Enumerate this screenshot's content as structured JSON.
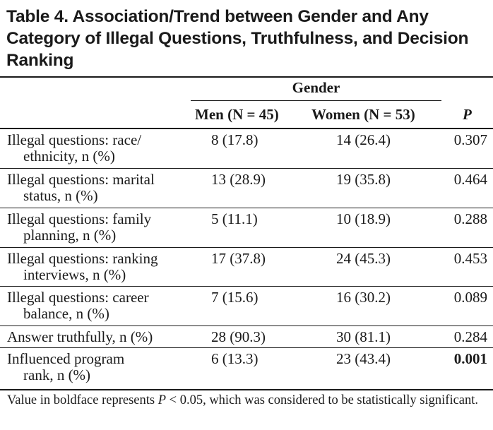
{
  "table": {
    "title": "Table 4. Association/Trend between Gender and Any Category of Illegal Questions, Truthfulness, and Decision Ranking",
    "group_header": "Gender",
    "columns": {
      "men": "Men (N = 45)",
      "women": "Women (N = 53)",
      "p": "P"
    },
    "rows": [
      {
        "label_line1": "Illegal questions: race/",
        "label_line2": "ethnicity, n (%)",
        "men": "8 (17.8)",
        "women": "14 (26.4)",
        "p": "0.307"
      },
      {
        "label_line1": "Illegal questions: marital",
        "label_line2": "status, n (%)",
        "men": "13 (28.9)",
        "women": "19 (35.8)",
        "p": "0.464"
      },
      {
        "label_line1": "Illegal questions: family",
        "label_line2": "planning, n (%)",
        "men": "5 (11.1)",
        "women": "10 (18.9)",
        "p": "0.288"
      },
      {
        "label_line1": "Illegal questions: ranking",
        "label_line2": "interviews, n (%)",
        "men": "17 (37.8)",
        "women": "24 (45.3)",
        "p": "0.453"
      },
      {
        "label_line1": "Illegal questions: career",
        "label_line2": "balance, n (%)",
        "men": "7 (15.6)",
        "women": "16 (30.2)",
        "p": "0.089"
      },
      {
        "label_line1": "Answer truthfully, n (%)",
        "label_line2": "",
        "men": "28 (90.3)",
        "women": "30 (81.1)",
        "p": "0.284"
      },
      {
        "label_line1": "Influenced program",
        "label_line2": "rank, n (%)",
        "men": "6 (13.3)",
        "women": "23 (43.4)",
        "p": "0.001",
        "p_bold": true
      }
    ],
    "footnote": {
      "before": "Value in boldface represents ",
      "italic": "P",
      "after": " < 0.05, which was considered to be statistically significant."
    }
  }
}
